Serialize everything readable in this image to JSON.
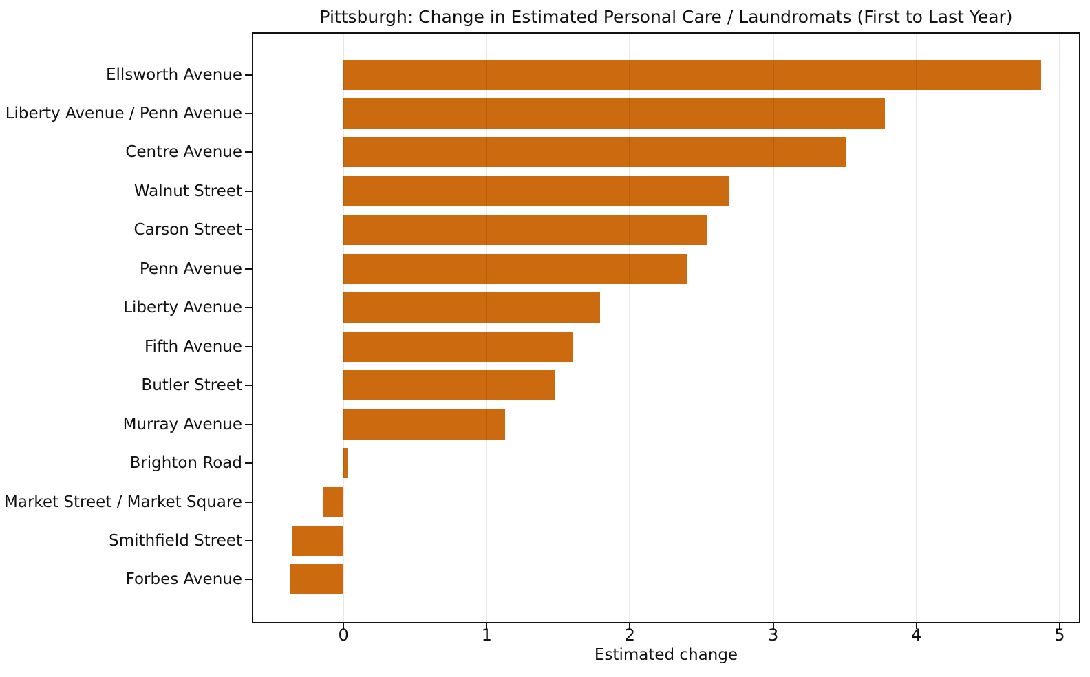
{
  "chart_data": {
    "type": "bar",
    "orientation": "horizontal",
    "title": "Pittsburgh: Change in Estimated Personal Care / Laundromats (First to Last Year)",
    "xlabel": "Estimated change",
    "ylabel": "",
    "categories": [
      "Ellsworth Avenue",
      "Liberty Avenue / Penn Avenue",
      "Centre Avenue",
      "Walnut Street",
      "Carson Street",
      "Penn Avenue",
      "Liberty Avenue",
      "Fifth Avenue",
      "Butler Street",
      "Murray Avenue",
      "Brighton Road",
      "Market Street / Market Square",
      "Smithfield Street",
      "Forbes Avenue"
    ],
    "values": [
      4.87,
      3.78,
      3.51,
      2.69,
      2.54,
      2.4,
      1.79,
      1.6,
      1.48,
      1.13,
      0.03,
      -0.14,
      -0.36,
      -0.37
    ],
    "xticks": [
      0,
      1,
      2,
      3,
      4,
      5
    ],
    "xtick_labels": [
      "0",
      "1",
      "2",
      "3",
      "4",
      "5"
    ],
    "xlim": [
      -0.63,
      5.135
    ],
    "grid": true,
    "legend_position": "none",
    "bar_color": "#CC6A10",
    "spine_color": "#111111",
    "text_color": "#111111",
    "background": "#ffffff"
  }
}
